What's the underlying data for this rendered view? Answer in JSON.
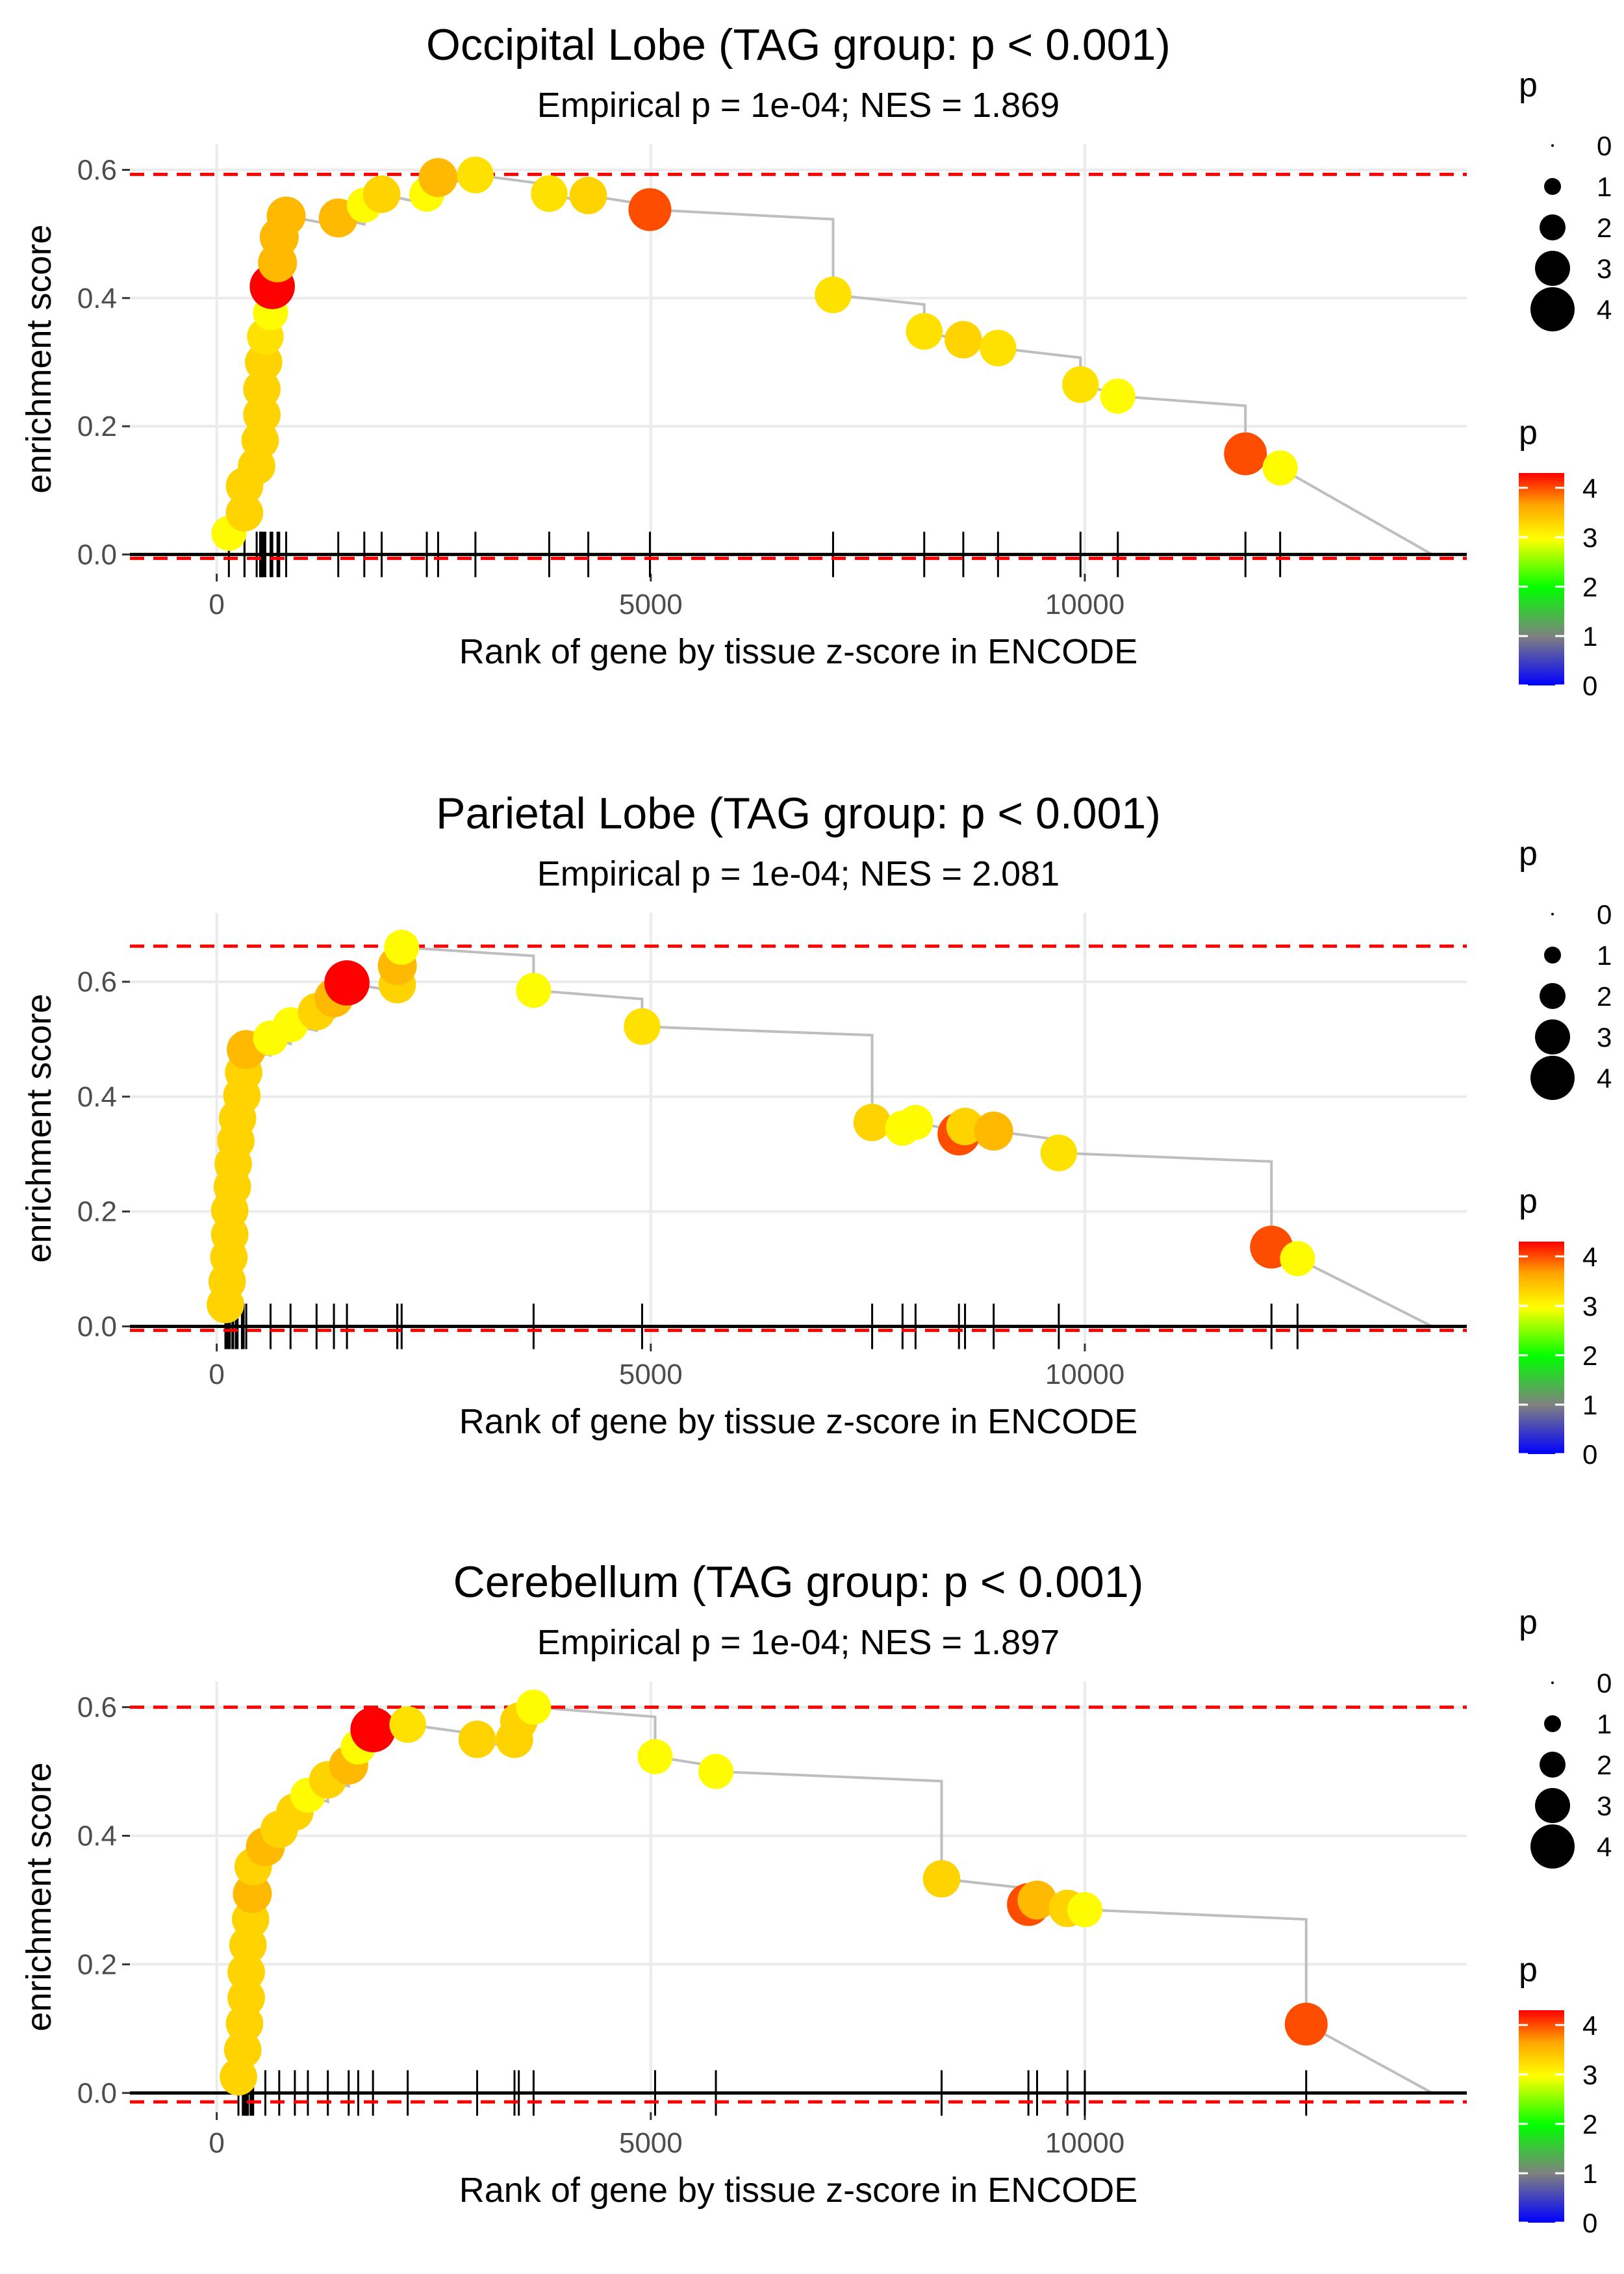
{
  "colors": {
    "reference_line": "#ff0000",
    "es_line": "#bebebe",
    "baseline": "#000000",
    "gridline": "#ebebeb",
    "gradient_stops": [
      "#0000ff",
      "#808080",
      "#00ff00",
      "#ffff00",
      "#ffa500",
      "#ff0000"
    ]
  },
  "legend": {
    "size_title": "p",
    "size_labels": [
      "0",
      "1",
      "2",
      "3",
      "4"
    ],
    "color_title": "p",
    "color_labels": [
      "4",
      "3",
      "2",
      "1",
      "0"
    ]
  },
  "chart_data": [
    {
      "type": "scatter",
      "title": "Occipital Lobe (TAG group: p < 0.001)",
      "subtitle": "Empirical p = 1e-04; NES = 1.869",
      "xlabel": "Rank of gene by tissue z-score in ENCODE",
      "ylabel": "enrichment score",
      "xlim": [
        -1000,
        14400
      ],
      "ylim": [
        -0.03,
        0.64
      ],
      "xticks": [
        0,
        5000,
        10000
      ],
      "xtick_labels": [
        "0",
        "5000",
        "10000"
      ],
      "yticks": [
        0,
        0.2,
        0.4,
        0.6
      ],
      "ytick_labels": [
        "0.0",
        "0.2",
        "0.4",
        "0.6"
      ],
      "x_end": 14000,
      "ref_lines": [
        0.593,
        -0.006
      ],
      "points": [
        {
          "x": 140,
          "y": 0.033,
          "p": 3.0
        },
        {
          "x": 320,
          "y": 0.065,
          "p": 3.3
        },
        {
          "x": 320,
          "y": 0.107,
          "p": 3.3
        },
        {
          "x": 460,
          "y": 0.138,
          "p": 3.3
        },
        {
          "x": 500,
          "y": 0.178,
          "p": 3.3
        },
        {
          "x": 520,
          "y": 0.218,
          "p": 3.3
        },
        {
          "x": 520,
          "y": 0.258,
          "p": 3.3
        },
        {
          "x": 540,
          "y": 0.3,
          "p": 3.3
        },
        {
          "x": 560,
          "y": 0.34,
          "p": 3.2
        },
        {
          "x": 620,
          "y": 0.377,
          "p": 3.0
        },
        {
          "x": 640,
          "y": 0.418,
          "p": 4.3
        },
        {
          "x": 700,
          "y": 0.455,
          "p": 3.5
        },
        {
          "x": 720,
          "y": 0.495,
          "p": 3.5
        },
        {
          "x": 800,
          "y": 0.528,
          "p": 3.5
        },
        {
          "x": 1400,
          "y": 0.525,
          "p": 3.5
        },
        {
          "x": 1700,
          "y": 0.545,
          "p": 3.0
        },
        {
          "x": 1900,
          "y": 0.562,
          "p": 3.3
        },
        {
          "x": 2420,
          "y": 0.562,
          "p": 3.0
        },
        {
          "x": 2550,
          "y": 0.588,
          "p": 3.5
        },
        {
          "x": 2980,
          "y": 0.592,
          "p": 3.2
        },
        {
          "x": 3830,
          "y": 0.563,
          "p": 3.2
        },
        {
          "x": 4280,
          "y": 0.56,
          "p": 3.3
        },
        {
          "x": 4990,
          "y": 0.538,
          "p": 4.0
        },
        {
          "x": 7100,
          "y": 0.405,
          "p": 3.2
        },
        {
          "x": 8150,
          "y": 0.348,
          "p": 3.2
        },
        {
          "x": 8600,
          "y": 0.335,
          "p": 3.3
        },
        {
          "x": 9000,
          "y": 0.322,
          "p": 3.2
        },
        {
          "x": 9950,
          "y": 0.265,
          "p": 3.2
        },
        {
          "x": 10380,
          "y": 0.247,
          "p": 3.0
        },
        {
          "x": 11850,
          "y": 0.157,
          "p": 4.0
        },
        {
          "x": 12250,
          "y": 0.135,
          "p": 3.0
        }
      ]
    },
    {
      "type": "scatter",
      "title": "Parietal Lobe (TAG group: p < 0.001)",
      "subtitle": "Empirical p = 1e-04; NES = 2.081",
      "xlabel": "Rank of gene by tissue z-score in ENCODE",
      "ylabel": "enrichment score",
      "xlim": [
        -1000,
        14400
      ],
      "ylim": [
        -0.03,
        0.72
      ],
      "xticks": [
        0,
        5000,
        10000
      ],
      "xtick_labels": [
        "0",
        "5000",
        "10000"
      ],
      "yticks": [
        0,
        0.2,
        0.4,
        0.6
      ],
      "ytick_labels": [
        "0.0",
        "0.2",
        "0.4",
        "0.6"
      ],
      "x_end": 14000,
      "ref_lines": [
        0.662,
        -0.007
      ],
      "points": [
        {
          "x": 100,
          "y": 0.038,
          "p": 3.3
        },
        {
          "x": 120,
          "y": 0.078,
          "p": 3.3
        },
        {
          "x": 140,
          "y": 0.12,
          "p": 3.3
        },
        {
          "x": 150,
          "y": 0.16,
          "p": 3.3
        },
        {
          "x": 150,
          "y": 0.202,
          "p": 3.3
        },
        {
          "x": 180,
          "y": 0.243,
          "p": 3.3
        },
        {
          "x": 190,
          "y": 0.283,
          "p": 3.3
        },
        {
          "x": 220,
          "y": 0.323,
          "p": 3.3
        },
        {
          "x": 240,
          "y": 0.362,
          "p": 3.3
        },
        {
          "x": 290,
          "y": 0.402,
          "p": 3.3
        },
        {
          "x": 310,
          "y": 0.442,
          "p": 3.3
        },
        {
          "x": 340,
          "y": 0.482,
          "p": 3.5
        },
        {
          "x": 620,
          "y": 0.502,
          "p": 3.0
        },
        {
          "x": 850,
          "y": 0.525,
          "p": 3.0
        },
        {
          "x": 1150,
          "y": 0.548,
          "p": 3.3
        },
        {
          "x": 1350,
          "y": 0.572,
          "p": 3.5
        },
        {
          "x": 1500,
          "y": 0.598,
          "p": 4.3
        },
        {
          "x": 2080,
          "y": 0.595,
          "p": 3.3
        },
        {
          "x": 2080,
          "y": 0.628,
          "p": 3.5
        },
        {
          "x": 2130,
          "y": 0.66,
          "p": 3.0
        },
        {
          "x": 3650,
          "y": 0.585,
          "p": 3.0
        },
        {
          "x": 4900,
          "y": 0.522,
          "p": 3.2
        },
        {
          "x": 7550,
          "y": 0.355,
          "p": 3.3
        },
        {
          "x": 7900,
          "y": 0.345,
          "p": 3.0
        },
        {
          "x": 8050,
          "y": 0.355,
          "p": 3.0
        },
        {
          "x": 8550,
          "y": 0.335,
          "p": 4.0
        },
        {
          "x": 8620,
          "y": 0.348,
          "p": 3.3
        },
        {
          "x": 8950,
          "y": 0.34,
          "p": 3.5
        },
        {
          "x": 9700,
          "y": 0.302,
          "p": 3.2
        },
        {
          "x": 12150,
          "y": 0.138,
          "p": 4.0
        },
        {
          "x": 12450,
          "y": 0.118,
          "p": 3.0
        }
      ]
    },
    {
      "type": "scatter",
      "title": "Cerebellum (TAG group: p < 0.001)",
      "subtitle": "Empirical p = 1e-04; NES = 1.897",
      "xlabel": "Rank of gene by tissue z-score in ENCODE",
      "ylabel": "enrichment score",
      "xlim": [
        -1000,
        14400
      ],
      "ylim": [
        -0.03,
        0.64
      ],
      "xticks": [
        0,
        5000,
        10000
      ],
      "xtick_labels": [
        "0",
        "5000",
        "10000"
      ],
      "yticks": [
        0,
        0.2,
        0.4,
        0.6
      ],
      "ytick_labels": [
        "0.0",
        "0.2",
        "0.4",
        "0.6"
      ],
      "x_end": 14000,
      "ref_lines": [
        0.6,
        -0.014
      ],
      "points": [
        {
          "x": 250,
          "y": 0.025,
          "p": 3.3
        },
        {
          "x": 300,
          "y": 0.067,
          "p": 3.3
        },
        {
          "x": 320,
          "y": 0.108,
          "p": 3.3
        },
        {
          "x": 340,
          "y": 0.148,
          "p": 3.3
        },
        {
          "x": 340,
          "y": 0.188,
          "p": 3.3
        },
        {
          "x": 360,
          "y": 0.23,
          "p": 3.3
        },
        {
          "x": 390,
          "y": 0.27,
          "p": 3.3
        },
        {
          "x": 410,
          "y": 0.31,
          "p": 3.5
        },
        {
          "x": 420,
          "y": 0.352,
          "p": 3.3
        },
        {
          "x": 560,
          "y": 0.383,
          "p": 3.5
        },
        {
          "x": 720,
          "y": 0.41,
          "p": 3.3
        },
        {
          "x": 900,
          "y": 0.437,
          "p": 3.3
        },
        {
          "x": 1050,
          "y": 0.463,
          "p": 3.0
        },
        {
          "x": 1280,
          "y": 0.487,
          "p": 3.3
        },
        {
          "x": 1520,
          "y": 0.51,
          "p": 3.5
        },
        {
          "x": 1630,
          "y": 0.538,
          "p": 3.0
        },
        {
          "x": 1800,
          "y": 0.565,
          "p": 4.3
        },
        {
          "x": 2200,
          "y": 0.573,
          "p": 3.2
        },
        {
          "x": 3000,
          "y": 0.55,
          "p": 3.3
        },
        {
          "x": 3430,
          "y": 0.55,
          "p": 3.3
        },
        {
          "x": 3480,
          "y": 0.578,
          "p": 3.3
        },
        {
          "x": 3650,
          "y": 0.6,
          "p": 3.0
        },
        {
          "x": 5050,
          "y": 0.523,
          "p": 3.0
        },
        {
          "x": 5750,
          "y": 0.5,
          "p": 3.0
        },
        {
          "x": 8350,
          "y": 0.333,
          "p": 3.3
        },
        {
          "x": 9350,
          "y": 0.293,
          "p": 4.0
        },
        {
          "x": 9450,
          "y": 0.3,
          "p": 3.5
        },
        {
          "x": 9800,
          "y": 0.287,
          "p": 3.3
        },
        {
          "x": 10000,
          "y": 0.285,
          "p": 3.0
        },
        {
          "x": 12550,
          "y": 0.107,
          "p": 4.0
        }
      ]
    }
  ]
}
